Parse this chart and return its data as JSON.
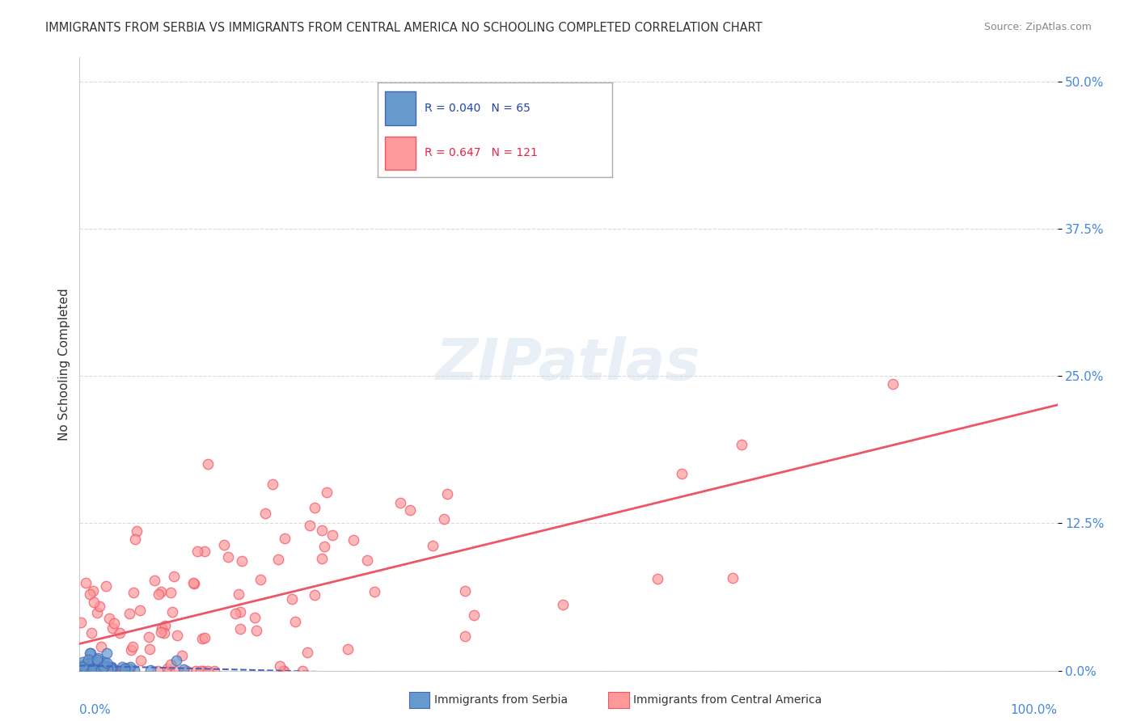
{
  "title": "IMMIGRANTS FROM SERBIA VS IMMIGRANTS FROM CENTRAL AMERICA NO SCHOOLING COMPLETED CORRELATION CHART",
  "source": "Source: ZipAtlas.com",
  "xlabel_bottom_left": "0.0%",
  "xlabel_bottom_right": "100.0%",
  "ylabel": "No Schooling Completed",
  "ytick_labels": [
    "0.0%",
    "12.5%",
    "25.0%",
    "37.5%",
    "50.0%"
  ],
  "ytick_values": [
    0.0,
    0.125,
    0.25,
    0.375,
    0.5
  ],
  "xlim": [
    0.0,
    1.0
  ],
  "ylim": [
    0.0,
    0.52
  ],
  "legend_serbia": "Immigrants from Serbia",
  "legend_central": "Immigrants from Central America",
  "R_serbia": 0.04,
  "N_serbia": 65,
  "R_central": 0.647,
  "N_central": 121,
  "color_serbia": "#6699CC",
  "color_central": "#FF9999",
  "regression_serbia_color": "#4466BB",
  "regression_central_color": "#EE5566",
  "watermark": "ZIPatlas",
  "background_color": "#FFFFFF",
  "grid_color": "#CCCCCC"
}
